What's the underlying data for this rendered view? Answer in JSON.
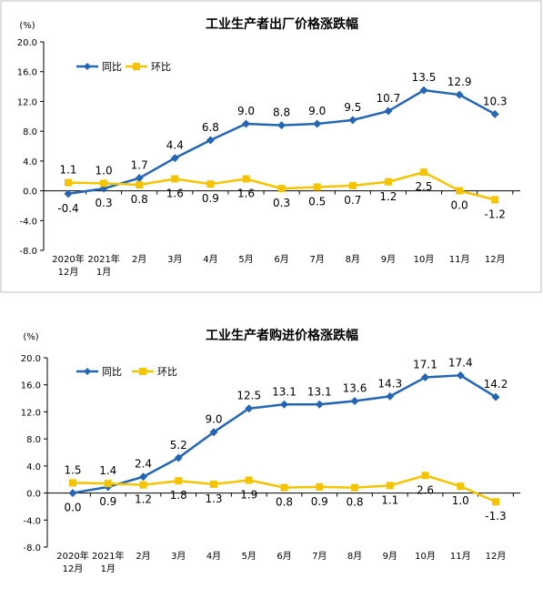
{
  "chart_data": [
    {
      "type": "line",
      "title": "工业生产者出厂价格涨跌幅",
      "unit": "(%)",
      "ylim": [
        -8.0,
        20.0
      ],
      "yticks": [
        "20.0",
        "16.0",
        "12.0",
        "8.0",
        "4.0",
        "0.0",
        "-4.0",
        "-8.0"
      ],
      "ytick_values": [
        20,
        16,
        12,
        8,
        4,
        0,
        -4,
        -8
      ],
      "categories": [
        {
          "l1": "2020年",
          "l2": "12月"
        },
        {
          "l1": "2021年",
          "l2": "1月"
        },
        {
          "l1": "2月",
          "l2": ""
        },
        {
          "l1": "3月",
          "l2": ""
        },
        {
          "l1": "4月",
          "l2": ""
        },
        {
          "l1": "5月",
          "l2": ""
        },
        {
          "l1": "6月",
          "l2": ""
        },
        {
          "l1": "7月",
          "l2": ""
        },
        {
          "l1": "8月",
          "l2": ""
        },
        {
          "l1": "9月",
          "l2": ""
        },
        {
          "l1": "10月",
          "l2": ""
        },
        {
          "l1": "11月",
          "l2": ""
        },
        {
          "l1": "12月",
          "l2": ""
        }
      ],
      "legend_position": "top-left",
      "series": [
        {
          "name": "同比",
          "color": "#2466b4",
          "marker": "diamond",
          "values": [
            -0.4,
            0.3,
            1.7,
            4.4,
            6.8,
            9.0,
            8.8,
            9.0,
            9.5,
            10.7,
            13.5,
            12.9,
            10.3
          ],
          "labels": [
            "-0.4",
            "0.3",
            "1.7",
            "4.4",
            "6.8",
            "9.0",
            "8.8",
            "9.0",
            "9.5",
            "10.7",
            "13.5",
            "12.9",
            "10.3"
          ],
          "label_pos": [
            "below",
            "below",
            "above",
            "above",
            "above",
            "above",
            "above",
            "above",
            "above",
            "above",
            "above",
            "above",
            "above"
          ]
        },
        {
          "name": "环比",
          "color": "#f5c400",
          "marker": "square",
          "values": [
            1.1,
            1.0,
            0.8,
            1.6,
            0.9,
            1.6,
            0.3,
            0.5,
            0.7,
            1.2,
            2.5,
            0.0,
            -1.2
          ],
          "labels": [
            "1.1",
            "1.0",
            "0.8",
            "1.6",
            "0.9",
            "1.6",
            "0.3",
            "0.5",
            "0.7",
            "1.2",
            "2.5",
            "0.0",
            "-1.2"
          ],
          "label_pos": [
            "above",
            "above",
            "below",
            "below",
            "below",
            "below",
            "below",
            "below",
            "below",
            "below",
            "below",
            "below",
            "below"
          ]
        }
      ]
    },
    {
      "type": "line",
      "title": "工业生产者购进价格涨跌幅",
      "unit": "(%)",
      "ylim": [
        -8.0,
        20.0
      ],
      "yticks": [
        "20.0",
        "16.0",
        "12.0",
        "8.0",
        "4.0",
        "0.0",
        "-4.0",
        "-8.0"
      ],
      "ytick_values": [
        20,
        16,
        12,
        8,
        4,
        0,
        -4,
        -8
      ],
      "categories": [
        {
          "l1": "2020年",
          "l2": "12月"
        },
        {
          "l1": "2021年",
          "l2": "1月"
        },
        {
          "l1": "2月",
          "l2": ""
        },
        {
          "l1": "3月",
          "l2": ""
        },
        {
          "l1": "4月",
          "l2": ""
        },
        {
          "l1": "5月",
          "l2": ""
        },
        {
          "l1": "6月",
          "l2": ""
        },
        {
          "l1": "7月",
          "l2": ""
        },
        {
          "l1": "8月",
          "l2": ""
        },
        {
          "l1": "9月",
          "l2": ""
        },
        {
          "l1": "10月",
          "l2": ""
        },
        {
          "l1": "11月",
          "l2": ""
        },
        {
          "l1": "12月",
          "l2": ""
        }
      ],
      "legend_position": "top-left",
      "series": [
        {
          "name": "同比",
          "color": "#2466b4",
          "marker": "diamond",
          "values": [
            0.0,
            0.9,
            2.4,
            5.2,
            9.0,
            12.5,
            13.1,
            13.1,
            13.6,
            14.3,
            17.1,
            17.4,
            14.2
          ],
          "labels": [
            "0.0",
            "0.9",
            "2.4",
            "5.2",
            "9.0",
            "12.5",
            "13.1",
            "13.1",
            "13.6",
            "14.3",
            "17.1",
            "17.4",
            "14.2"
          ],
          "label_pos": [
            "below",
            "below",
            "above",
            "above",
            "above",
            "above",
            "above",
            "above",
            "above",
            "above",
            "above",
            "above",
            "above"
          ]
        },
        {
          "name": "环比",
          "color": "#f5c400",
          "marker": "square",
          "values": [
            1.5,
            1.4,
            1.2,
            1.8,
            1.3,
            1.9,
            0.8,
            0.9,
            0.8,
            1.1,
            2.6,
            1.0,
            -1.3
          ],
          "labels": [
            "1.5",
            "1.4",
            "1.2",
            "1.8",
            "1.3",
            "1.9",
            "0.8",
            "0.9",
            "0.8",
            "1.1",
            "2.6",
            "1.0",
            "-1.3"
          ],
          "label_pos": [
            "above",
            "above",
            "below",
            "below",
            "below",
            "below",
            "below",
            "below",
            "below",
            "below",
            "below",
            "below",
            "below"
          ]
        }
      ]
    }
  ]
}
